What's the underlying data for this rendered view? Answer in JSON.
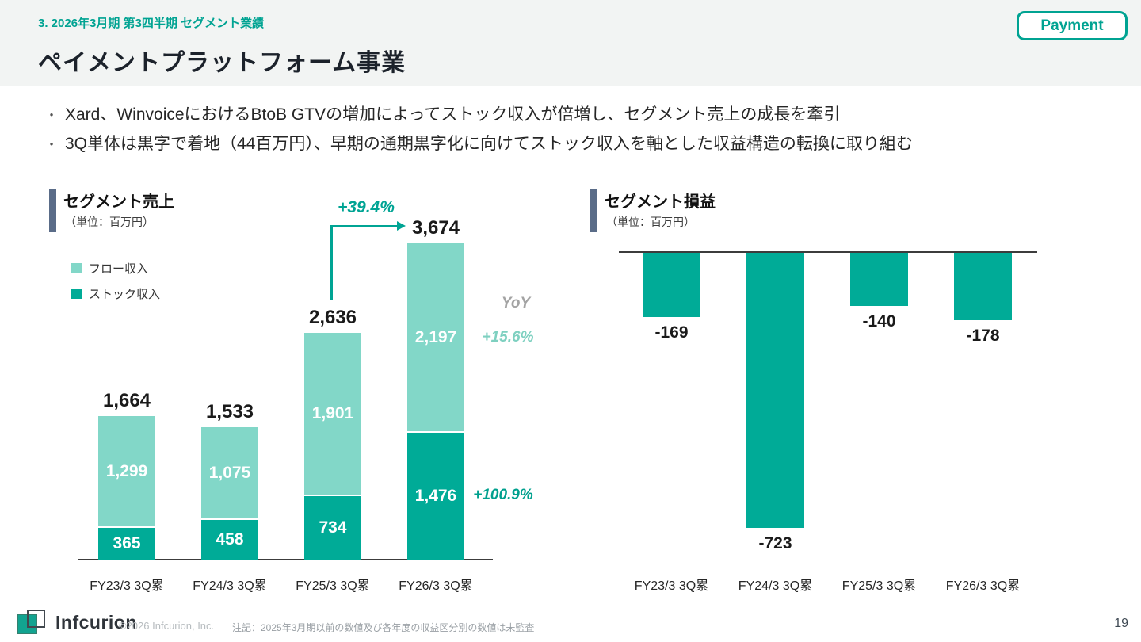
{
  "header": {
    "eyebrow": "3. 2026年3月期 第3四半期 セグメント業績",
    "title": "ペイメントプラットフォーム事業",
    "badge": "Payment"
  },
  "bullets": [
    "Xard、WinvoiceにおけるBtoB GTVの増加によってストック収入が倍増し、セグメント売上の成長を牽引",
    "3Q単体は黒字で着地（44百万円）、早期の通期黒字化に向けてストック収入を軸とした収益構造の転換に取り組む"
  ],
  "colors": {
    "accent_teal": "#00A392",
    "flow_light_teal": "#82D7C8",
    "stock_dark_teal": "#00AB97",
    "profit_bar_teal": "#00AB97",
    "section_marker_slate": "#5A6C88",
    "header_band": "#F2F4F3",
    "yoy_gray": "#A3A3A3"
  },
  "chart_data": [
    {
      "type": "bar",
      "stacked": true,
      "title": "セグメント売上",
      "unit_label": "（単位：百万円）",
      "categories": [
        "FY23/3 3Q累",
        "FY24/3 3Q累",
        "FY25/3 3Q累",
        "FY26/3 3Q累"
      ],
      "series": [
        {
          "name": "フロー収入",
          "values": [
            1299,
            1075,
            1901,
            2197
          ],
          "color": "#82D7C8"
        },
        {
          "name": "ストック収入",
          "values": [
            365,
            458,
            734,
            1476
          ],
          "color": "#00AB97"
        }
      ],
      "totals": [
        1664,
        1533,
        2636,
        3674
      ],
      "legend_position": "upper-left",
      "grid": false,
      "annotations": {
        "growth": "+39.4%",
        "yoy_header": "YoY",
        "flow_yoy": "+15.6%",
        "stock_yoy": "+100.9%"
      }
    },
    {
      "type": "bar",
      "title": "セグメント損益",
      "unit_label": "（単位：百万円）",
      "categories": [
        "FY23/3 3Q累",
        "FY24/3 3Q累",
        "FY25/3 3Q累",
        "FY26/3 3Q累"
      ],
      "values": [
        -169,
        -723,
        -140,
        -178
      ],
      "color": "#00AB97",
      "grid": false
    }
  ],
  "footer": {
    "brand": "Infcurion",
    "copyright": "©2026 Infcurion, Inc.",
    "note": "注記：2025年3月期以前の数値及び各年度の収益区分別の数値は未監査",
    "page_number": "19"
  }
}
